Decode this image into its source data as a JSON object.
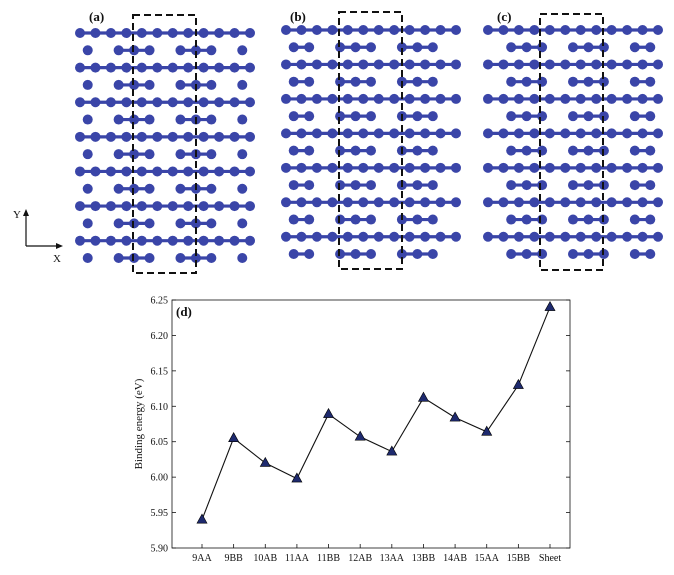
{
  "panels": {
    "a": {
      "label": "(a)"
    },
    "b": {
      "label": "(b)"
    },
    "c": {
      "label": "(c)"
    },
    "d": {
      "label": "(d)"
    }
  },
  "axes_indicator": {
    "y_label": "Y",
    "x_label": "X"
  },
  "colors": {
    "atom": "#3a45a8",
    "bond": "#3a45a8",
    "line": "#111111",
    "marker": "#1e2a6e"
  },
  "chart_data": {
    "type": "line",
    "categories": [
      "9AA",
      "9BB",
      "10AB",
      "11AA",
      "11BB",
      "12AB",
      "13AA",
      "13BB",
      "14AB",
      "15AA",
      "15BB",
      "Sheet"
    ],
    "series": [
      {
        "values": [
          5.94,
          6.055,
          6.02,
          5.998,
          6.089,
          6.057,
          6.036,
          6.112,
          6.084,
          6.064,
          6.13,
          6.24
        ]
      }
    ],
    "ylabel": "Binding energy (eV)",
    "xlabel": "",
    "ylim": [
      5.9,
      6.25
    ],
    "yticks": [
      "5.90",
      "5.95",
      "6.00",
      "6.05",
      "6.10",
      "6.15",
      "6.20",
      "6.25"
    ],
    "marker": "triangle",
    "grid": false
  }
}
